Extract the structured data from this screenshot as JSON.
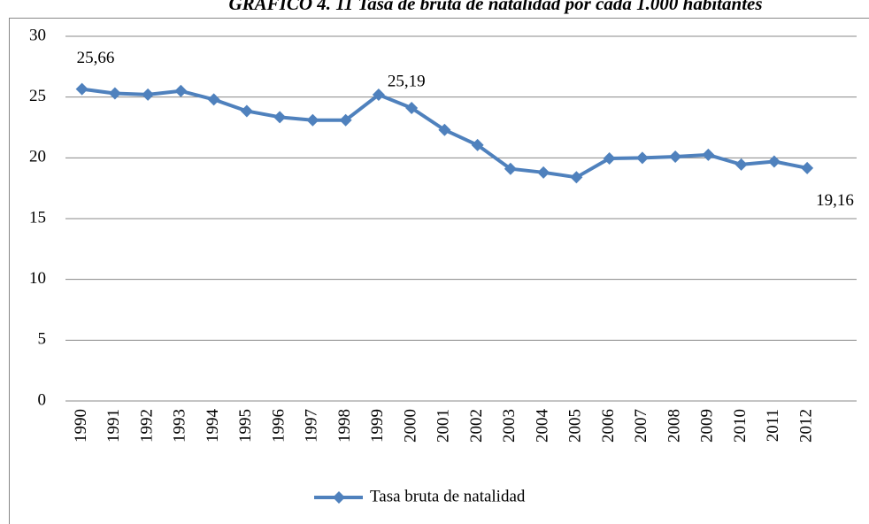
{
  "chart_data": {
    "type": "line",
    "title": "GRAFICO 4. 11 Tasa de bruta de natalidad por cada 1.000 habitantes",
    "categories": [
      "1990",
      "1991",
      "1992",
      "1993",
      "1994",
      "1995",
      "1996",
      "1997",
      "1998",
      "1999",
      "2000",
      "2001",
      "2002",
      "2003",
      "2004",
      "2005",
      "2006",
      "2007",
      "2008",
      "2009",
      "2010",
      "2011",
      "2012"
    ],
    "series": [
      {
        "name": "Tasa bruta de natalidad",
        "color": "#4f81bd",
        "values": [
          25.66,
          25.3,
          25.2,
          25.5,
          24.8,
          23.85,
          23.35,
          23.1,
          23.1,
          25.19,
          24.1,
          22.3,
          21.05,
          19.1,
          18.8,
          18.4,
          19.95,
          20.0,
          20.1,
          20.25,
          19.45,
          19.7,
          19.16
        ],
        "value_labels": [
          "25,66",
          null,
          null,
          null,
          null,
          null,
          null,
          null,
          null,
          "25,19",
          null,
          null,
          null,
          null,
          null,
          null,
          null,
          null,
          null,
          null,
          null,
          null,
          "19,16"
        ]
      }
    ],
    "ylim": [
      0,
      30
    ],
    "yticks": [
      0,
      5,
      10,
      15,
      20,
      25,
      30
    ],
    "grid": true,
    "legend": "bottom"
  }
}
